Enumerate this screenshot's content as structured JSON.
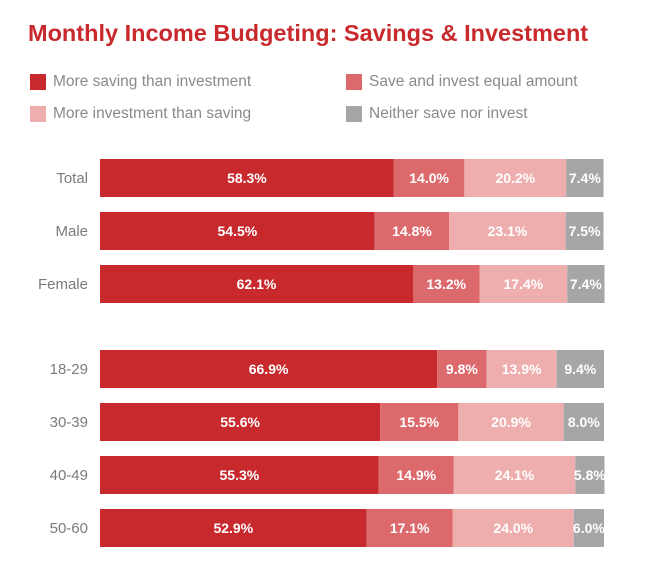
{
  "chart_data": {
    "type": "bar",
    "orientation": "horizontal",
    "stacked": true,
    "title": "Monthly Income Budgeting: Savings & Investment",
    "categories": [
      "Total",
      "Male",
      "Female",
      "18-29",
      "30-39",
      "40-49",
      "50-60"
    ],
    "groups": [
      [
        "Total",
        "Male",
        "Female"
      ],
      [
        "18-29",
        "30-39",
        "40-49",
        "50-60"
      ]
    ],
    "series": [
      {
        "name": "More saving than investment",
        "color": "#c8292d",
        "values": [
          58.3,
          54.5,
          62.1,
          66.9,
          55.6,
          55.3,
          52.9
        ]
      },
      {
        "name": "Save and invest equal amount",
        "color": "#dc6a6d",
        "values": [
          14.0,
          14.8,
          13.2,
          9.8,
          15.5,
          14.9,
          17.1
        ]
      },
      {
        "name": "More investment than saving",
        "color": "#eeaeae",
        "values": [
          20.2,
          23.1,
          17.4,
          13.9,
          20.9,
          24.1,
          24.0
        ]
      },
      {
        "name": "Neither save nor invest",
        "color": "#a6a6a6",
        "values": [
          7.4,
          7.5,
          7.4,
          9.4,
          8.0,
          5.8,
          6.0
        ]
      }
    ],
    "value_suffix": "%",
    "xlim": [
      0,
      100
    ],
    "legend_position": "top",
    "grid": false
  }
}
